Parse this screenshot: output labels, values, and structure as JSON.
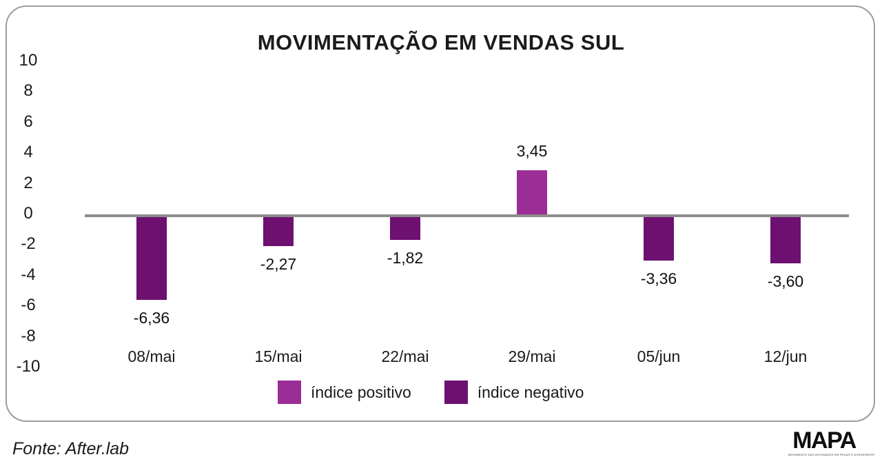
{
  "title": "MOVIMENTAÇÃO EM VENDAS SUL",
  "chart_data": {
    "type": "bar",
    "categories": [
      "08/mai",
      "15/mai",
      "22/mai",
      "29/mai",
      "05/jun",
      "12/jun"
    ],
    "values": [
      -6.36,
      -2.27,
      -1.82,
      3.45,
      -3.36,
      -3.6
    ],
    "value_labels": [
      "-6,36",
      "-2,27",
      "-1,82",
      "3,45",
      "-3,36",
      "-3,60"
    ],
    "yticks": [
      "10",
      "8",
      "6",
      "4",
      "2",
      "0",
      "-2",
      "-4",
      "-6",
      "-8",
      "-10"
    ],
    "ylim": [
      -10,
      10
    ],
    "grid": false,
    "xlabel": "",
    "ylabel": "",
    "colors": {
      "positive": "#9b2d96",
      "negative": "#6d1070",
      "axis_line": "#8c8c8c"
    },
    "legend": [
      {
        "label": "índice positivo",
        "color": "#9b2d96"
      },
      {
        "label": "índice negativo",
        "color": "#6d1070"
      }
    ],
    "legend_position": "bottom"
  },
  "source": "Fonte: After.lab",
  "logo": {
    "name": "MAPA",
    "tagline": "MOVIMENTO DAS ATIVIDADES EM PEÇAS E ACESSÓRIOS"
  }
}
